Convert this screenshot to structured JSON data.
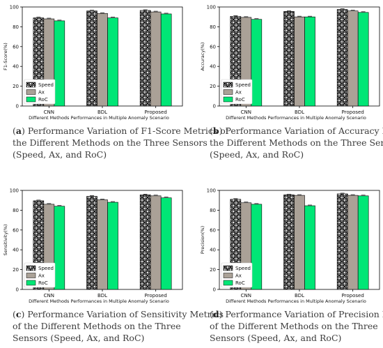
{
  "chart_data": [
    {
      "type": "bar",
      "panel_id": "a",
      "categories": [
        "CNN",
        "BDL",
        "Proposed"
      ],
      "series": [
        {
          "name": "Speed",
          "values": [
            89,
            96,
            96.5
          ]
        },
        {
          "name": "Ax",
          "values": [
            88,
            93.5,
            95
          ]
        },
        {
          "name": "RoC",
          "values": [
            86,
            89,
            93
          ]
        }
      ],
      "xlabel": "Different Methods Performances in Multiple Anomaly Scenario",
      "ylabel": "F1-Score(%)",
      "ylim": [
        0,
        100
      ],
      "yticks": [
        0,
        20,
        40,
        60,
        80,
        100
      ],
      "legend": "bottom-left",
      "grid": false,
      "caption_label": "(a)",
      "caption": "Performance Variation of F1-Score Metrics of the Different Methods on the Three Sensors (Speed, Ax, and RoC)"
    },
    {
      "type": "bar",
      "panel_id": "b",
      "categories": [
        "CNN",
        "BDL",
        "Proposed"
      ],
      "series": [
        {
          "name": "Speed",
          "values": [
            90.5,
            95.5,
            97.5
          ]
        },
        {
          "name": "Ax",
          "values": [
            89.5,
            90,
            96
          ]
        },
        {
          "name": "RoC",
          "values": [
            87.5,
            90,
            94.5
          ]
        }
      ],
      "xlabel": "Different Methods Performances in Multiple Anomaly Scenario",
      "ylabel": "Accuracy(%)",
      "ylim": [
        0,
        100
      ],
      "yticks": [
        0,
        20,
        40,
        60,
        80,
        100
      ],
      "legend": "bottom-left",
      "grid": false,
      "caption_label": "(b)",
      "caption": "Performance Variation of Accuracy Metrics of the Different Methods on the Three Sensors (Speed, Ax, and RoC)"
    },
    {
      "type": "bar",
      "panel_id": "c",
      "categories": [
        "CNN",
        "BDL",
        "Proposed"
      ],
      "series": [
        {
          "name": "Speed",
          "values": [
            89.5,
            94,
            95.5
          ]
        },
        {
          "name": "Ax",
          "values": [
            86,
            90.5,
            94.5
          ]
        },
        {
          "name": "RoC",
          "values": [
            84,
            88,
            92.5
          ]
        }
      ],
      "xlabel": "Different Methods Performances in Multiple Anomaly Scenario",
      "ylabel": "Sensitivity(%)",
      "ylim": [
        0,
        100
      ],
      "yticks": [
        0,
        20,
        40,
        60,
        80,
        100
      ],
      "legend": "bottom-left",
      "grid": false,
      "caption_label": "(c)",
      "caption": "Performance Variation of Sensitivity Metrics of the Different Methods on the Three Sensors (Speed, Ax, and RoC)"
    },
    {
      "type": "bar",
      "panel_id": "d",
      "categories": [
        "CNN",
        "BDL",
        "Proposed"
      ],
      "series": [
        {
          "name": "Speed",
          "values": [
            91,
            95.5,
            96.5
          ]
        },
        {
          "name": "Ax",
          "values": [
            87.5,
            95,
            95
          ]
        },
        {
          "name": "RoC",
          "values": [
            86,
            84.5,
            94.5
          ]
        }
      ],
      "xlabel": "Different Methods Performances in Multiple Anomaly Scenario",
      "ylabel": "Precision(%)",
      "ylim": [
        0,
        100
      ],
      "yticks": [
        0,
        20,
        40,
        60,
        80,
        100
      ],
      "legend": "bottom-left",
      "grid": false,
      "caption_label": "(d)",
      "caption": "Performance Variation of Precision Metrics of the Different Methods on the Three Sensors (Speed, Ax, and RoC)"
    }
  ],
  "series_colors": {
    "Speed": "#ffffff",
    "Ax": "#aaa197",
    "RoC": "#00e676"
  },
  "series_patterns": {
    "Speed": "crosshatch-circles",
    "Ax": "solid",
    "RoC": "solid"
  }
}
